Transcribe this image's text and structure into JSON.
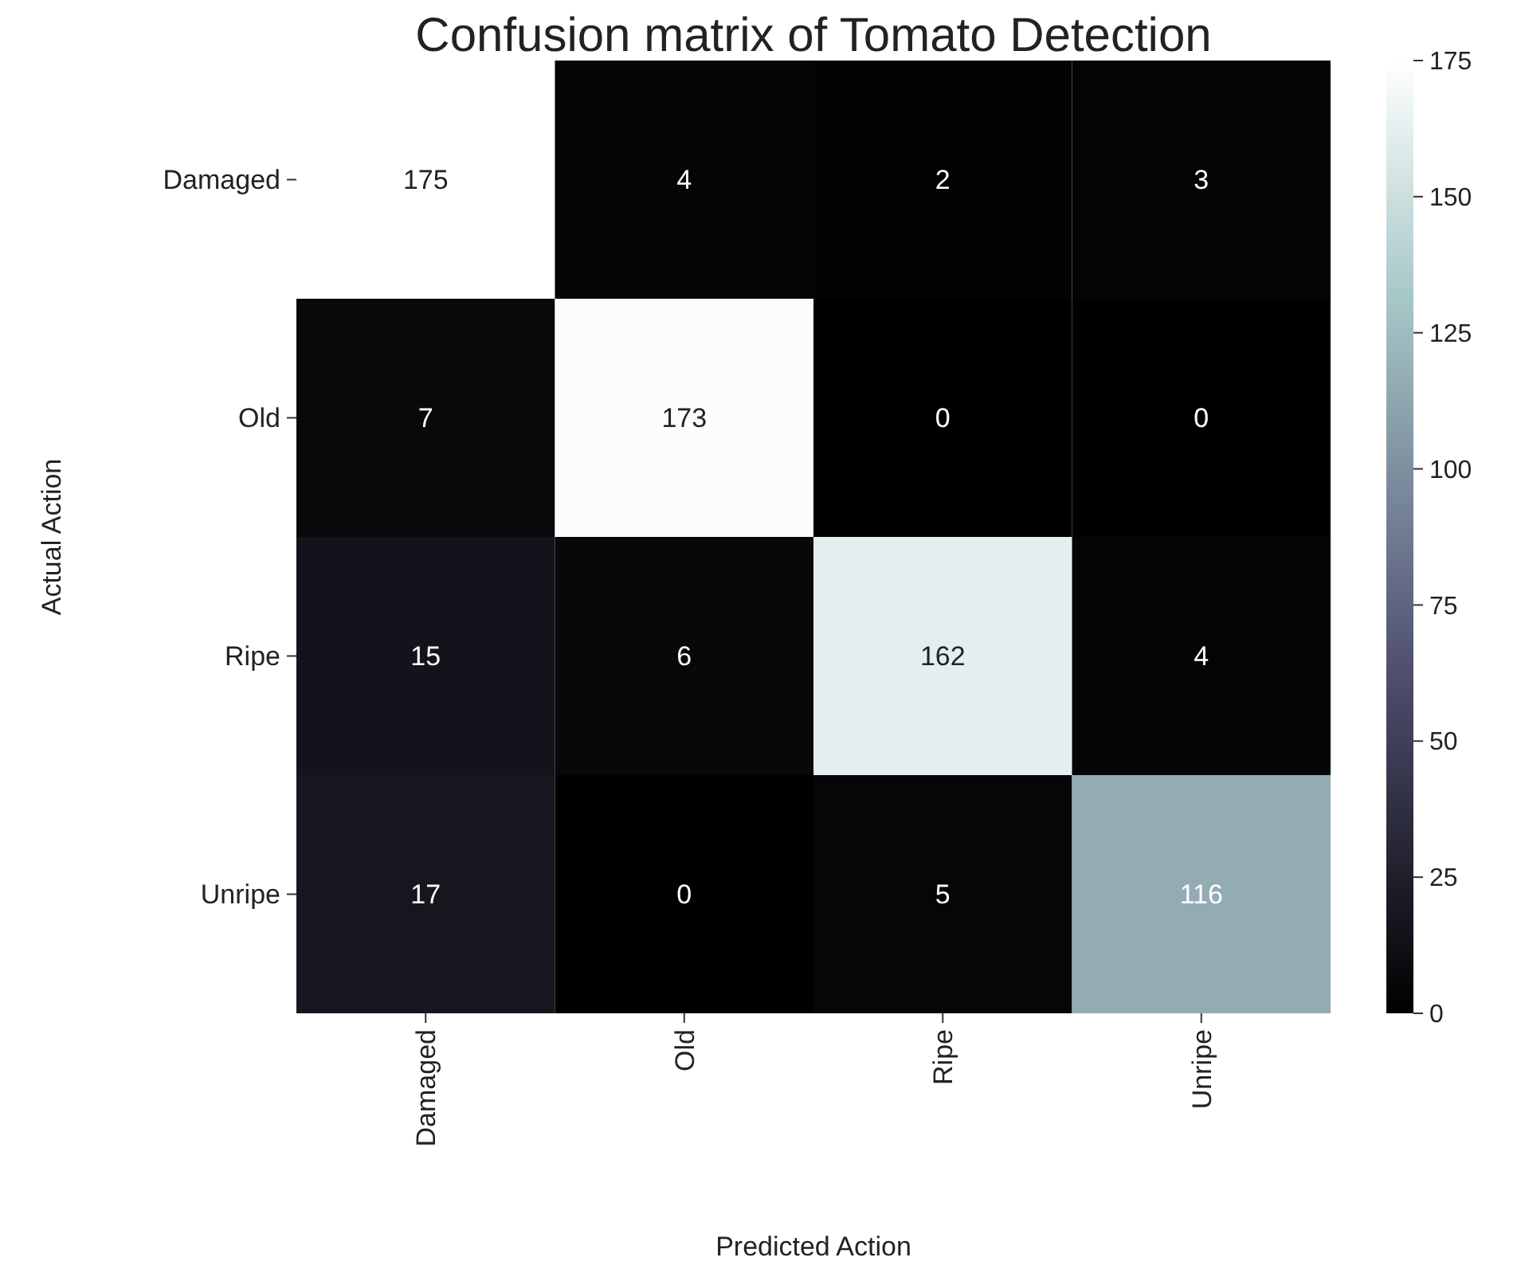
{
  "chart_data": {
    "type": "heatmap",
    "title": "Confusion matrix of Tomato Detection",
    "xlabel": "Predicted Action",
    "ylabel": "Actual Action",
    "categories": [
      "Damaged",
      "Old",
      "Ripe",
      "Unripe"
    ],
    "y_categories": [
      "Damaged",
      "Old",
      "Ripe",
      "Unripe"
    ],
    "cells": [
      [
        175,
        4,
        2,
        3
      ],
      [
        7,
        173,
        0,
        0
      ],
      [
        15,
        6,
        162,
        4
      ],
      [
        17,
        0,
        5,
        116
      ]
    ],
    "data_labels": true,
    "clim": [
      0,
      175
    ],
    "cticks": [
      0,
      25,
      50,
      75,
      100,
      125,
      150,
      175
    ]
  }
}
